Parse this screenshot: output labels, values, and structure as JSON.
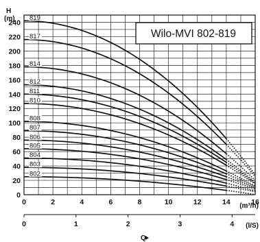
{
  "chart_data": {
    "type": "line",
    "title": "Wilo-MVI 802-819",
    "y_axis": {
      "label": "H",
      "unit": "(m)",
      "ticks": [
        0,
        20,
        40,
        60,
        80,
        100,
        120,
        140,
        160,
        180,
        200,
        220,
        240
      ],
      "ylim": [
        0,
        250
      ]
    },
    "x_axis": {
      "label": "Q",
      "unit": "(m³/h)",
      "ticks": [
        0,
        2,
        4,
        6,
        8,
        10,
        12,
        14,
        16
      ],
      "xlim": [
        0,
        16
      ]
    },
    "x_axis_secondary": {
      "unit": "(l/S)",
      "ticks": [
        0,
        1,
        2,
        3,
        4
      ]
    },
    "grid": true,
    "series": [
      {
        "name": "802",
        "h0": 25,
        "h14": 6
      },
      {
        "name": "803",
        "h0": 38,
        "h14": 12
      },
      {
        "name": "804",
        "h0": 51,
        "h14": 16
      },
      {
        "name": "805",
        "h0": 64,
        "h14": 21
      },
      {
        "name": "806",
        "h0": 76,
        "h14": 25
      },
      {
        "name": "807",
        "h0": 89,
        "h14": 29
      },
      {
        "name": "808",
        "h0": 102,
        "h14": 33
      },
      {
        "name": "810",
        "h0": 127,
        "h14": 41
      },
      {
        "name": "811",
        "h0": 140,
        "h14": 45
      },
      {
        "name": "812",
        "h0": 153,
        "h14": 49
      },
      {
        "name": "814",
        "h0": 178,
        "h14": 57
      },
      {
        "name": "817",
        "h0": 216,
        "h14": 70
      },
      {
        "name": "819",
        "h0": 242,
        "h14": 78
      }
    ]
  }
}
